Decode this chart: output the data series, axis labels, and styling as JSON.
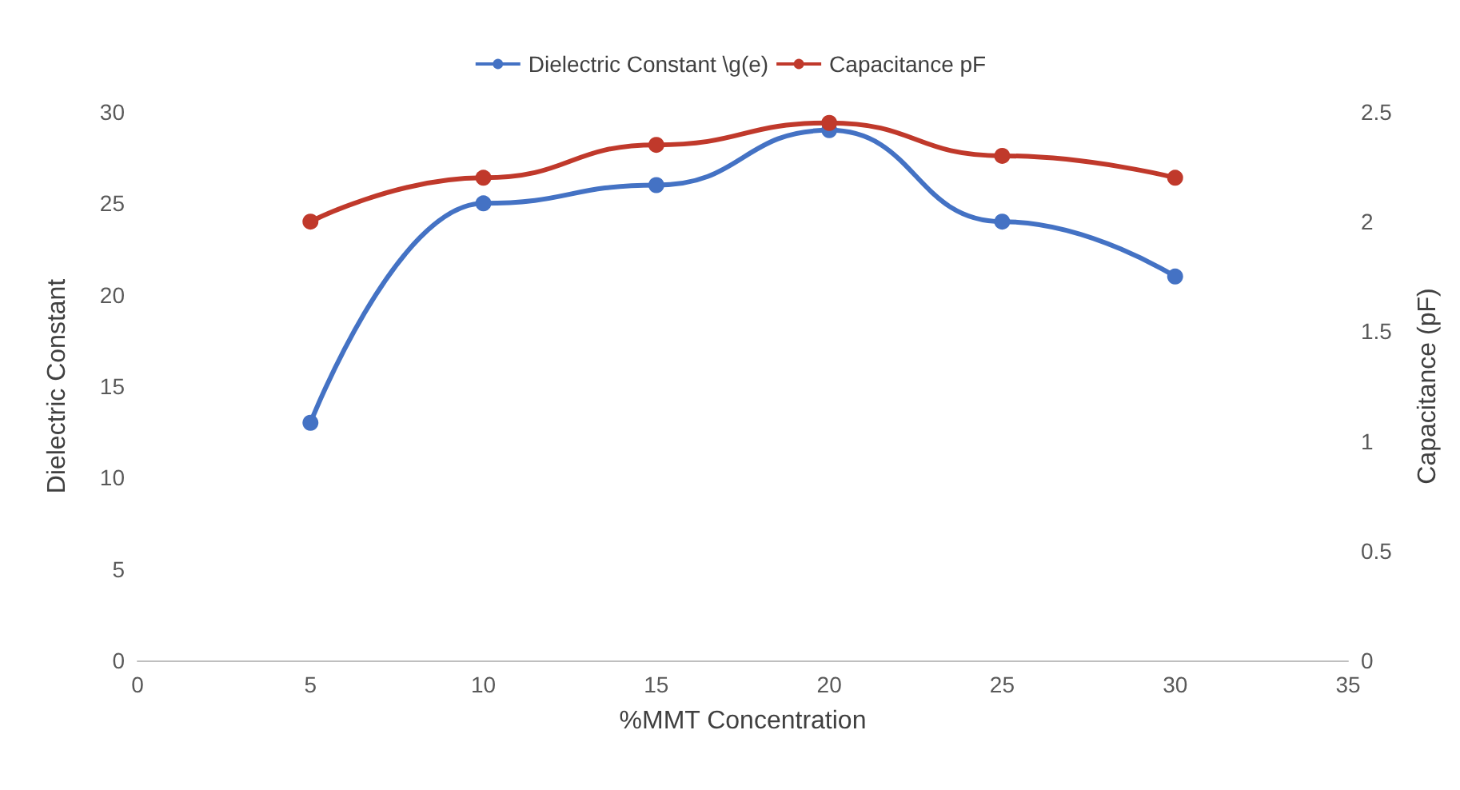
{
  "chart_data": {
    "type": "line",
    "xlabel": "%MMT Concentration",
    "ylabel": "Dielectric Constant",
    "y2label": "Capacitance (pF)",
    "x": [
      5,
      10,
      15,
      20,
      25,
      30
    ],
    "series": [
      {
        "name": "Dielectric Constant \\g(e)",
        "color": "#4472c4",
        "values": [
          13,
          25,
          26,
          29,
          24,
          21
        ]
      },
      {
        "name": "Capacitance pF",
        "color": "#c0392b",
        "values": [
          2.0,
          2.2,
          2.35,
          2.45,
          2.3,
          2.2
        ],
        "axis": "y2"
      }
    ],
    "xlim": [
      0,
      35
    ],
    "xticks": [
      0,
      5,
      10,
      15,
      20,
      25,
      30,
      35
    ],
    "ylim": [
      0,
      30
    ],
    "yticks": [
      0,
      5,
      10,
      15,
      20,
      25,
      30
    ],
    "y2lim": [
      0,
      2.5
    ],
    "y2ticks": [
      0,
      0.5,
      1,
      1.5,
      2,
      2.5
    ],
    "legend": "top",
    "marker": "circle",
    "line_style": "solid",
    "grid": false
  }
}
